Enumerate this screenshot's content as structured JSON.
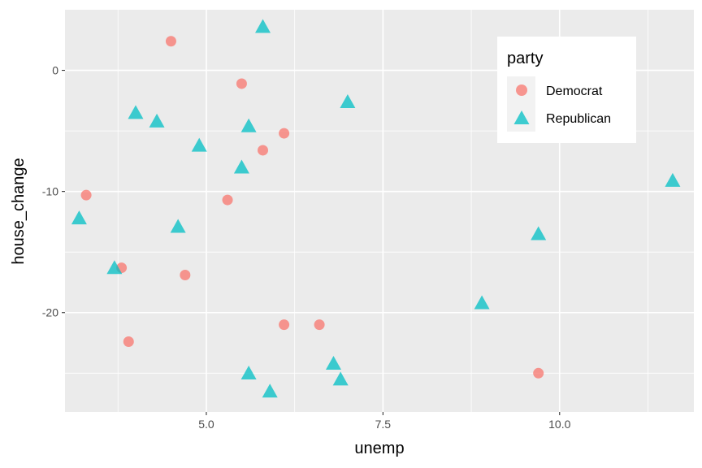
{
  "chart_data": {
    "type": "scatter",
    "title": "",
    "xlabel": "unemp",
    "ylabel": "house_change",
    "xlim": [
      3.0,
      11.9
    ],
    "ylim": [
      -28.2,
      5.0
    ],
    "x_ticks": [
      5.0,
      7.5,
      10.0
    ],
    "x_tick_labels": [
      "5.0",
      "7.5",
      "10.0"
    ],
    "x_minor_ticks": [
      3.75,
      6.25,
      8.75,
      11.25
    ],
    "y_ticks": [
      0,
      -10,
      -20
    ],
    "y_tick_labels": [
      "0",
      "-10",
      "-20"
    ],
    "y_minor_ticks": [
      -5,
      -15,
      -25
    ],
    "grid": true,
    "legend": {
      "title": "party",
      "placement": "top-right",
      "entries": [
        {
          "label": "Democrat",
          "shape": "circle",
          "color": "#F8766D"
        },
        {
          "label": "Republican",
          "shape": "triangle",
          "color": "#00BFC4"
        }
      ]
    },
    "series": [
      {
        "name": "Democrat",
        "shape": "circle",
        "color": "#F8766D",
        "points": [
          {
            "x": 4.5,
            "y": 2.4
          },
          {
            "x": 5.5,
            "y": -1.1
          },
          {
            "x": 6.1,
            "y": -5.2
          },
          {
            "x": 5.8,
            "y": -6.6
          },
          {
            "x": 3.3,
            "y": -10.3
          },
          {
            "x": 5.3,
            "y": -10.7
          },
          {
            "x": 3.8,
            "y": -16.3
          },
          {
            "x": 4.7,
            "y": -16.9
          },
          {
            "x": 3.9,
            "y": -22.4
          },
          {
            "x": 6.1,
            "y": -21.0
          },
          {
            "x": 6.6,
            "y": -21.0
          },
          {
            "x": 9.7,
            "y": -25.0
          }
        ]
      },
      {
        "name": "Republican",
        "shape": "triangle",
        "color": "#00BFC4",
        "points": [
          {
            "x": 5.8,
            "y": 3.6
          },
          {
            "x": 7.0,
            "y": -2.6
          },
          {
            "x": 4.0,
            "y": -3.5
          },
          {
            "x": 4.3,
            "y": -4.2
          },
          {
            "x": 5.6,
            "y": -4.6
          },
          {
            "x": 4.9,
            "y": -6.2
          },
          {
            "x": 5.5,
            "y": -8.0
          },
          {
            "x": 11.6,
            "y": -9.1
          },
          {
            "x": 3.2,
            "y": -12.2
          },
          {
            "x": 4.6,
            "y": -12.9
          },
          {
            "x": 9.7,
            "y": -13.5
          },
          {
            "x": 3.7,
            "y": -16.3
          },
          {
            "x": 8.9,
            "y": -19.2
          },
          {
            "x": 6.8,
            "y": -24.2
          },
          {
            "x": 5.6,
            "y": -25.0
          },
          {
            "x": 6.9,
            "y": -25.5
          },
          {
            "x": 5.9,
            "y": -26.5
          }
        ]
      }
    ]
  }
}
